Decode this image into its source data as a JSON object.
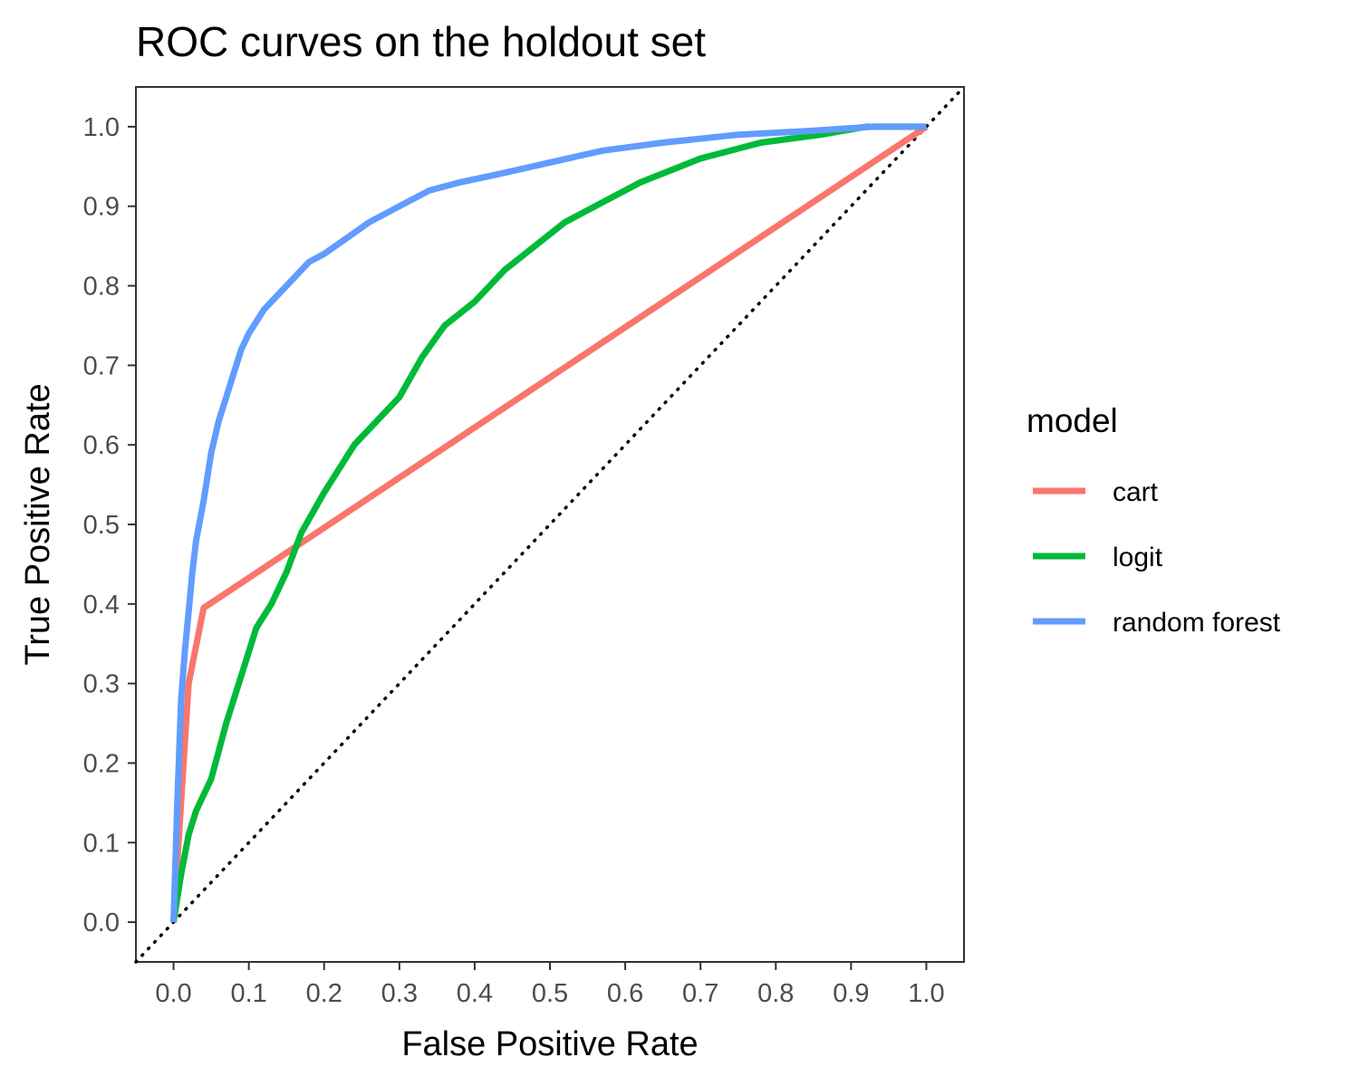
{
  "chart_data": {
    "type": "line",
    "title": "ROC curves on the holdout set",
    "xlabel": "False Positive Rate",
    "ylabel": "True Positive Rate",
    "xlim": [
      -0.05,
      1.05
    ],
    "ylim": [
      -0.05,
      1.05
    ],
    "x_ticks": [
      0.0,
      0.1,
      0.2,
      0.3,
      0.4,
      0.5,
      0.6,
      0.7,
      0.8,
      0.9,
      1.0
    ],
    "y_ticks": [
      0.0,
      0.1,
      0.2,
      0.3,
      0.4,
      0.5,
      0.6,
      0.7,
      0.8,
      0.9,
      1.0
    ],
    "x_tick_labels": [
      "0.0",
      "0.1",
      "0.2",
      "0.3",
      "0.4",
      "0.5",
      "0.6",
      "0.7",
      "0.8",
      "0.9",
      "1.0"
    ],
    "y_tick_labels": [
      "0.0",
      "0.1",
      "0.2",
      "0.3",
      "0.4",
      "0.5",
      "0.6",
      "0.7",
      "0.8",
      "0.9",
      "1.0"
    ],
    "grid": false,
    "legend": {
      "title": "model",
      "placement": "right"
    },
    "reference_line": {
      "style": "dotted",
      "color": "#000000",
      "x": [
        -0.05,
        1.05
      ],
      "y": [
        -0.05,
        1.05
      ]
    },
    "series": [
      {
        "name": "cart",
        "color": "#F8766D",
        "x": [
          0.0,
          0.02,
          0.04,
          1.0
        ],
        "y": [
          0.0,
          0.3,
          0.395,
          1.0
        ]
      },
      {
        "name": "logit",
        "color": "#00BA38",
        "x": [
          0.0,
          0.01,
          0.02,
          0.03,
          0.05,
          0.07,
          0.09,
          0.11,
          0.13,
          0.15,
          0.17,
          0.2,
          0.24,
          0.27,
          0.3,
          0.33,
          0.36,
          0.4,
          0.44,
          0.48,
          0.52,
          0.56,
          0.62,
          0.7,
          0.78,
          0.86,
          0.92,
          1.0
        ],
        "y": [
          0.0,
          0.06,
          0.11,
          0.14,
          0.18,
          0.25,
          0.31,
          0.37,
          0.4,
          0.44,
          0.49,
          0.54,
          0.6,
          0.63,
          0.66,
          0.71,
          0.75,
          0.78,
          0.82,
          0.85,
          0.88,
          0.9,
          0.93,
          0.96,
          0.98,
          0.99,
          1.0,
          1.0
        ]
      },
      {
        "name": "random forest",
        "color": "#619CFF",
        "x": [
          0.0,
          0.005,
          0.01,
          0.015,
          0.02,
          0.025,
          0.03,
          0.04,
          0.05,
          0.06,
          0.07,
          0.08,
          0.09,
          0.1,
          0.12,
          0.14,
          0.16,
          0.18,
          0.2,
          0.23,
          0.26,
          0.3,
          0.34,
          0.38,
          0.43,
          0.5,
          0.57,
          0.65,
          0.75,
          0.85,
          0.93,
          1.0
        ],
        "y": [
          0.0,
          0.15,
          0.28,
          0.34,
          0.39,
          0.44,
          0.48,
          0.53,
          0.59,
          0.63,
          0.66,
          0.69,
          0.72,
          0.74,
          0.77,
          0.79,
          0.81,
          0.83,
          0.84,
          0.86,
          0.88,
          0.9,
          0.92,
          0.93,
          0.94,
          0.955,
          0.97,
          0.98,
          0.99,
          0.995,
          1.0,
          1.0
        ]
      }
    ]
  }
}
